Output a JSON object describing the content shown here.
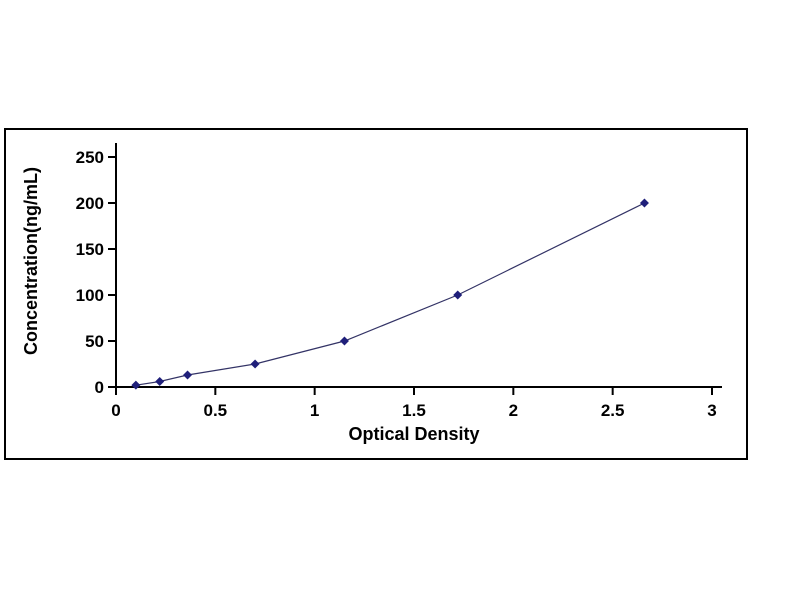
{
  "chart_data": {
    "type": "line",
    "title": "",
    "xlabel": "Optical Density",
    "ylabel": "Concentration(ng/mL)",
    "x": [
      0.1,
      0.22,
      0.36,
      0.7,
      1.15,
      1.72,
      2.66
    ],
    "y": [
      2,
      6,
      13,
      25,
      50,
      100,
      200
    ],
    "xlim": [
      0,
      3
    ],
    "ylim": [
      0,
      250
    ],
    "x_ticks": [
      0,
      0.5,
      1,
      1.5,
      2,
      2.5,
      3
    ],
    "x_tick_labels": [
      "0",
      "0.5",
      "1",
      "1.5",
      "2",
      "2.5",
      "3"
    ],
    "y_ticks": [
      0,
      50,
      100,
      150,
      200,
      250
    ],
    "y_tick_labels": [
      "0",
      "50",
      "100",
      "150",
      "200",
      "250"
    ],
    "grid": false,
    "legend": null,
    "marker": "diamond",
    "marker_color": "#1f1f7a",
    "line_color": "#333366",
    "axis_color": "#000000"
  }
}
